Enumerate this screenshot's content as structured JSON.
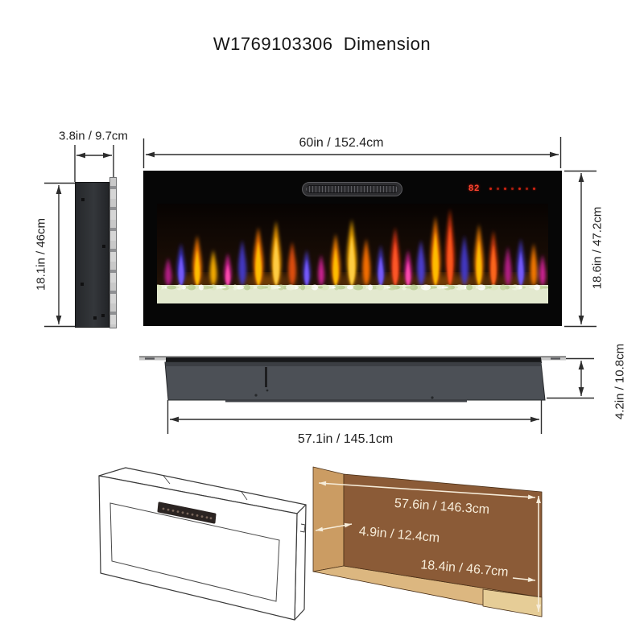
{
  "title": "W1769103306  Dimension",
  "views": {
    "side": {
      "width_label": "3.8in / 9.7cm",
      "height_label": "18.1in / 46cm"
    },
    "front": {
      "width_label": "60in / 152.4cm",
      "height_label": "18.6in / 47.2cm",
      "display": {
        "temperature": "82"
      }
    },
    "back": {
      "width_label": "57.1in / 145.1cm",
      "height_label": "4.2in / 10.8cm"
    },
    "recess": {
      "width_label": "57.6in / 146.3cm",
      "depth_label": "4.9in / 12.4cm",
      "height_label": "18.4in / 46.7cm"
    }
  },
  "colors": {
    "led_red": "#ff4430",
    "dimension_line": "#2d2d2d",
    "recess_back_wall": "#8b5b37",
    "recess_side_wall": "#cb9c63",
    "recess_floor": "#dcb780",
    "recess_text": "#f6ecd9",
    "flame_orange": "#ff7a00",
    "flame_blue": "#4338ca",
    "flame_magenta": "#d6219c",
    "flame_red": "#e8380f",
    "crystal_bed": "#e3e9cf"
  }
}
